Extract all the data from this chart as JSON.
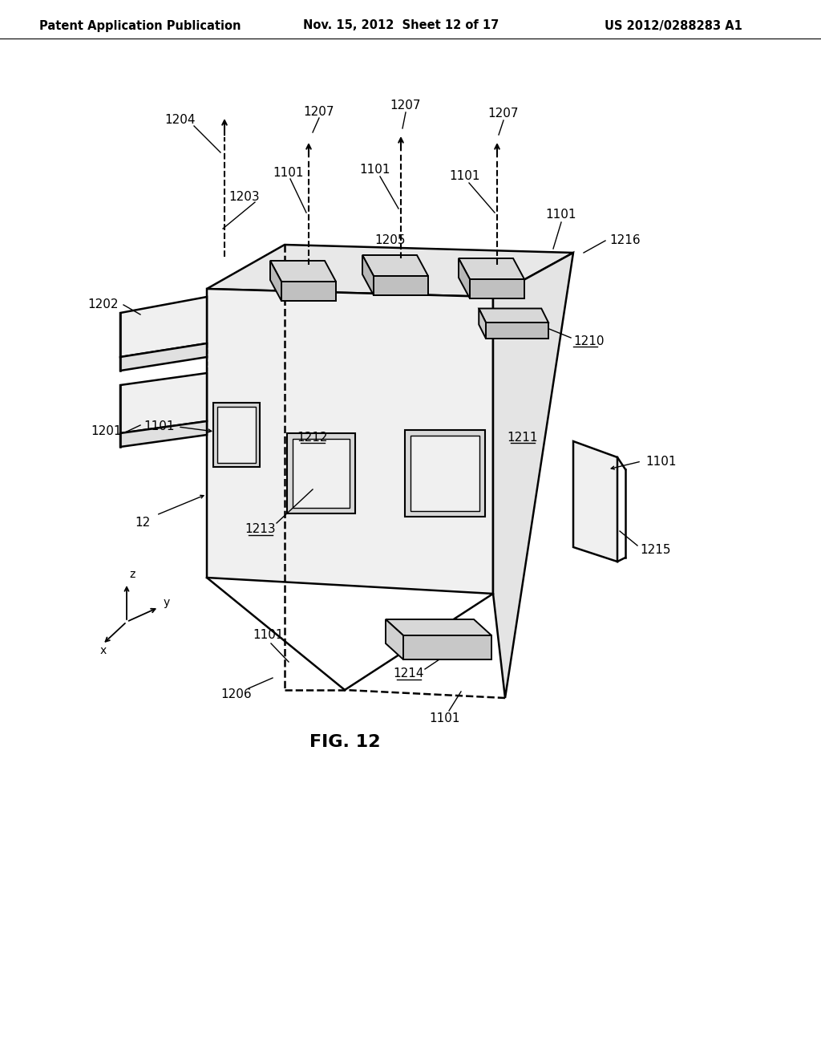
{
  "bg_color": "#ffffff",
  "line_color": "#000000",
  "header_left": "Patent Application Publication",
  "header_center": "Nov. 15, 2012  Sheet 12 of 17",
  "header_right": "US 2012/0288283 A1",
  "figure_caption": "FIG. 12",
  "lw_main": 1.8,
  "lw_leader": 1.0,
  "lw_arrow": 1.5,
  "fs_label": 11,
  "fs_header": 10.5,
  "fs_caption": 16
}
